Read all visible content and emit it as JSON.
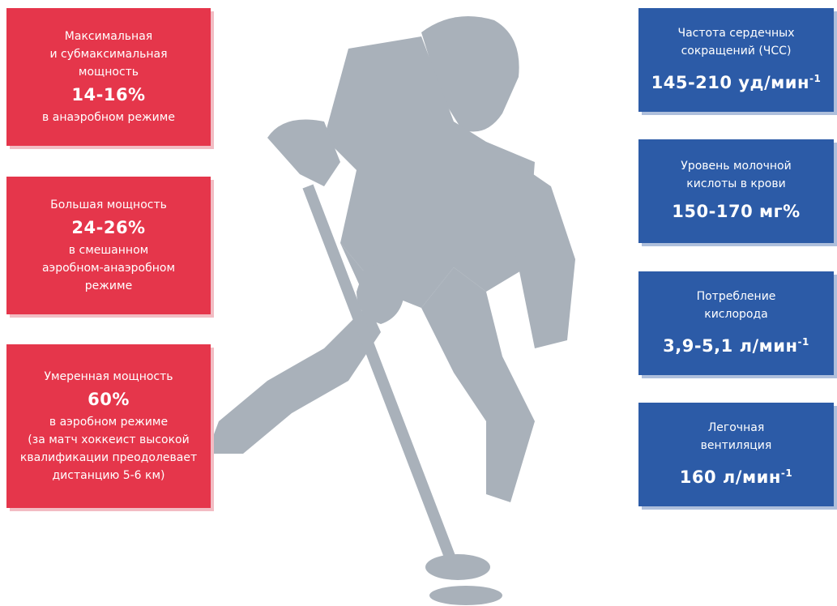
{
  "left_boxes": [
    {
      "title": [
        "Максимальная",
        "и субмаксимальная",
        "мощность"
      ],
      "value": "14-16%",
      "note": [
        "в анаэробном режиме"
      ]
    },
    {
      "title": [
        "Большая мощность"
      ],
      "value": "24-26%",
      "note": [
        "в смешанном",
        "аэробном-анаэробном",
        "режиме"
      ]
    },
    {
      "title": [
        "Умеренная мощность"
      ],
      "value": "60%",
      "note": [
        "в аэробном режиме",
        "(за матч хоккеист высокой",
        "квалификации преодолевает",
        "дистанцию 5-6 км)"
      ]
    }
  ],
  "right_boxes": [
    {
      "title": [
        "Частота сердечных",
        "сокращений (ЧСС)"
      ],
      "value": "145-210 уд/мин",
      "value_sup": "-1"
    },
    {
      "title": [
        "Уровень молочной",
        "кислоты в крови"
      ],
      "value": "150-170 мг%"
    },
    {
      "title": [
        "Потребление",
        "кислорода"
      ],
      "value": "3,9-5,1 л/мин",
      "value_sup": "-1"
    },
    {
      "title": [
        "Легочная",
        "вентиляция"
      ],
      "value": "160 л/мин",
      "value_sup": "-1"
    }
  ]
}
